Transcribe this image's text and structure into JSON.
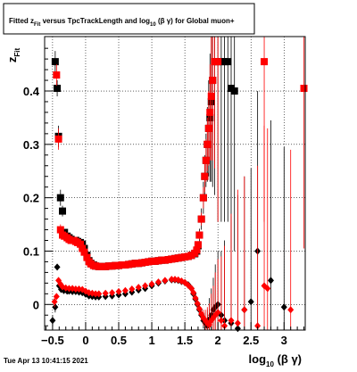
{
  "chart_data": {
    "type": "scatter",
    "title": "Fitted z_Fit versus TpcTrackLength and log10(βγ) for Global muon+",
    "title_parts": {
      "pre": "Fitted  z",
      "sub1": "Fit",
      "mid": " versus TpcTrackLength and log",
      "sub2": "10",
      "post": " (β γ) for Global muon+"
    },
    "xlabel": "log10 (β γ)",
    "xlabel_parts": {
      "pre": "log",
      "sub": "10",
      "post": " (β γ)"
    },
    "ylabel": "z_Fit",
    "ylabel_parts": {
      "pre": "z",
      "sub": "Fit"
    },
    "xlim": [
      -0.62,
      3.32
    ],
    "ylim": [
      -0.048,
      0.502
    ],
    "x_ticks": [
      -0.5,
      0,
      0.5,
      1,
      1.5,
      2,
      2.5,
      3
    ],
    "x_tick_labels": [
      "−0.5",
      "0",
      "0.5",
      "1",
      "1.5",
      "2",
      "2.5",
      "3"
    ],
    "y_ticks": [
      0,
      0.1,
      0.2,
      0.3,
      0.4
    ],
    "y_tick_labels": [
      "0",
      "0.1",
      "0.2",
      "0.3",
      "0.4"
    ],
    "grid": true,
    "timestamp": "Tue Apr 13 10:41:15 2021",
    "colors": {
      "black_series": "#000000",
      "red_series": "#ff0000",
      "frame": "#000000",
      "grid": "#000000"
    },
    "series": [
      {
        "marker": "square",
        "color": "#000000",
        "x": [
          -0.46,
          -0.43,
          -0.41,
          -0.38,
          -0.35,
          -0.32,
          -0.28,
          -0.25,
          -0.22,
          -0.18,
          -0.15,
          -0.12,
          -0.08,
          -0.05,
          -0.02,
          0.02,
          0.05,
          0.08,
          0.12,
          0.15,
          0.2,
          0.25,
          0.3,
          0.35,
          0.4,
          0.45,
          0.5,
          0.55,
          0.6,
          0.65,
          0.7,
          0.75,
          0.8,
          0.85,
          0.9,
          0.95,
          1.0,
          1.05,
          1.1,
          1.15,
          1.2,
          1.25,
          1.3,
          1.35,
          1.4,
          1.45,
          1.5,
          1.55,
          1.6,
          1.65,
          1.68,
          1.7,
          1.72,
          1.75,
          1.78,
          1.8,
          1.82,
          1.84,
          1.86,
          1.88,
          1.9,
          1.92,
          1.95,
          2.0,
          2.05,
          2.1,
          2.15,
          2.2,
          2.25
        ],
        "y": [
          0.455,
          0.405,
          0.315,
          0.2,
          0.175,
          0.135,
          0.128,
          0.125,
          0.122,
          0.12,
          0.12,
          0.118,
          0.116,
          0.113,
          0.105,
          0.092,
          0.082,
          0.077,
          0.074,
          0.072,
          0.071,
          0.071,
          0.071,
          0.072,
          0.072,
          0.073,
          0.073,
          0.074,
          0.074,
          0.075,
          0.076,
          0.077,
          0.077,
          0.078,
          0.079,
          0.08,
          0.081,
          0.081,
          0.082,
          0.083,
          0.083,
          0.084,
          0.085,
          0.086,
          0.087,
          0.088,
          0.089,
          0.09,
          0.092,
          0.095,
          0.1,
          0.11,
          0.13,
          0.16,
          0.2,
          0.24,
          0.27,
          0.3,
          0.33,
          0.35,
          0.38,
          0.42,
          0.455,
          0.455,
          0.455,
          0.455,
          0.455,
          0.405,
          0.4
        ],
        "yerr": [
          0.02,
          0.015,
          0.02,
          0.015,
          0.01,
          0.005,
          0.003,
          0.002,
          0.002,
          0.002,
          0.002,
          0.002,
          0.002,
          0.002,
          0.002,
          0.002,
          0.002,
          0.002,
          0.002,
          0.001,
          0.001,
          0.001,
          0.001,
          0.001,
          0.001,
          0.001,
          0.001,
          0.001,
          0.001,
          0.001,
          0.001,
          0.001,
          0.001,
          0.001,
          0.001,
          0.001,
          0.001,
          0.001,
          0.001,
          0.001,
          0.001,
          0.001,
          0.001,
          0.002,
          0.002,
          0.002,
          0.002,
          0.003,
          0.004,
          0.005,
          0.006,
          0.008,
          0.012,
          0.02,
          0.03,
          0.04,
          0.05,
          0.07,
          0.09,
          0.12,
          0.15,
          0.2,
          0.25,
          0.3,
          0.3,
          0.3,
          0.3,
          0.3,
          0.3
        ]
      },
      {
        "marker": "square",
        "color": "#ff0000",
        "x": [
          -0.44,
          -0.41,
          -0.38,
          -0.35,
          -0.32,
          -0.28,
          -0.25,
          -0.22,
          -0.18,
          -0.15,
          -0.12,
          -0.08,
          -0.05,
          -0.02,
          0.02,
          0.05,
          0.08,
          0.12,
          0.15,
          0.2,
          0.25,
          0.3,
          0.35,
          0.4,
          0.45,
          0.5,
          0.55,
          0.6,
          0.65,
          0.7,
          0.75,
          0.8,
          0.85,
          0.9,
          0.95,
          1.0,
          1.05,
          1.1,
          1.15,
          1.2,
          1.25,
          1.3,
          1.35,
          1.4,
          1.45,
          1.5,
          1.55,
          1.6,
          1.65,
          1.68,
          1.7,
          1.72,
          1.75,
          1.78,
          1.8,
          1.82,
          1.84,
          1.86,
          1.88,
          1.9,
          1.92,
          1.95,
          2.0,
          2.7,
          3.3
        ],
        "y": [
          0.43,
          0.31,
          0.14,
          0.13,
          0.128,
          0.125,
          0.122,
          0.12,
          0.12,
          0.118,
          0.116,
          0.113,
          0.105,
          0.098,
          0.088,
          0.08,
          0.076,
          0.073,
          0.072,
          0.071,
          0.071,
          0.071,
          0.072,
          0.072,
          0.073,
          0.073,
          0.074,
          0.074,
          0.075,
          0.076,
          0.077,
          0.077,
          0.078,
          0.079,
          0.08,
          0.081,
          0.081,
          0.082,
          0.083,
          0.083,
          0.084,
          0.085,
          0.086,
          0.087,
          0.088,
          0.089,
          0.09,
          0.092,
          0.096,
          0.102,
          0.112,
          0.13,
          0.16,
          0.2,
          0.24,
          0.27,
          0.3,
          0.33,
          0.36,
          0.39,
          0.42,
          0.455,
          0.455,
          0.455,
          0.405
        ],
        "yerr": [
          0.02,
          0.02,
          0.01,
          0.005,
          0.003,
          0.002,
          0.002,
          0.002,
          0.002,
          0.002,
          0.002,
          0.002,
          0.002,
          0.002,
          0.002,
          0.002,
          0.002,
          0.001,
          0.001,
          0.001,
          0.001,
          0.001,
          0.001,
          0.001,
          0.001,
          0.001,
          0.001,
          0.001,
          0.001,
          0.001,
          0.001,
          0.001,
          0.001,
          0.001,
          0.001,
          0.001,
          0.001,
          0.001,
          0.001,
          0.001,
          0.001,
          0.001,
          0.001,
          0.002,
          0.002,
          0.002,
          0.002,
          0.003,
          0.004,
          0.005,
          0.006,
          0.008,
          0.012,
          0.02,
          0.03,
          0.04,
          0.05,
          0.07,
          0.09,
          0.12,
          0.15,
          0.2,
          0.3,
          0.3,
          0.3
        ]
      },
      {
        "marker": "diamond",
        "color": "#000000",
        "x": [
          -0.5,
          -0.46,
          -0.43,
          -0.4,
          -0.37,
          -0.33,
          -0.28,
          -0.25,
          -0.2,
          -0.15,
          -0.1,
          -0.05,
          0.0,
          0.05,
          0.1,
          0.15,
          0.2,
          0.3,
          0.4,
          0.5,
          0.6,
          0.7,
          0.8,
          0.9,
          1.0,
          1.1,
          1.2,
          1.3,
          1.35,
          1.4,
          1.45,
          1.5,
          1.55,
          1.6,
          1.63,
          1.66,
          1.69,
          1.72,
          1.75,
          1.78,
          1.81,
          1.84,
          1.87,
          1.9,
          1.93,
          1.96,
          2.0,
          2.05,
          2.1,
          2.2,
          2.3,
          2.4,
          2.5,
          2.6,
          2.8,
          3.0
        ],
        "y": [
          -0.03,
          -0.005,
          0.07,
          0.035,
          0.028,
          0.026,
          0.025,
          0.025,
          0.024,
          0.024,
          0.023,
          0.022,
          0.019,
          0.016,
          0.015,
          0.014,
          0.014,
          0.015,
          0.016,
          0.018,
          0.02,
          0.023,
          0.027,
          0.03,
          0.035,
          0.04,
          0.044,
          0.046,
          0.046,
          0.045,
          0.043,
          0.041,
          0.037,
          0.03,
          0.02,
          0.01,
          0.0,
          -0.01,
          -0.02,
          -0.03,
          -0.035,
          -0.04,
          -0.028,
          -0.02,
          -0.01,
          -0.005,
          0.0,
          -0.02,
          -0.03,
          -0.035,
          -0.045,
          -0.01,
          0.005,
          0.1,
          0.045,
          -0.005
        ],
        "yerr": [
          0.01,
          0.01,
          0.005,
          0.003,
          0.002,
          0.002,
          0.002,
          0.001,
          0.001,
          0.001,
          0.001,
          0.001,
          0.001,
          0.001,
          0.001,
          0.001,
          0.001,
          0.001,
          0.001,
          0.001,
          0.001,
          0.001,
          0.001,
          0.001,
          0.001,
          0.001,
          0.001,
          0.001,
          0.001,
          0.001,
          0.002,
          0.002,
          0.003,
          0.004,
          0.005,
          0.006,
          0.008,
          0.01,
          0.012,
          0.015,
          0.02,
          0.03,
          0.04,
          0.05,
          0.06,
          0.08,
          0.1,
          0.12,
          0.15,
          0.2,
          0.25,
          0.25,
          0.25,
          0.3,
          0.3,
          0.3
        ]
      },
      {
        "marker": "diamond",
        "color": "#ff0000",
        "x": [
          -0.47,
          -0.44,
          -0.41,
          -0.38,
          -0.35,
          -0.3,
          -0.25,
          -0.2,
          -0.15,
          -0.1,
          -0.05,
          0.0,
          0.05,
          0.1,
          0.15,
          0.2,
          0.3,
          0.4,
          0.5,
          0.6,
          0.7,
          0.8,
          0.9,
          1.0,
          1.1,
          1.2,
          1.3,
          1.35,
          1.4,
          1.45,
          1.5,
          1.55,
          1.6,
          1.63,
          1.66,
          1.69,
          1.72,
          1.75,
          1.78,
          1.81,
          1.84,
          1.87,
          1.9,
          1.93,
          1.96,
          2.0,
          2.05,
          2.1,
          2.2,
          2.3,
          2.4,
          2.6,
          2.7,
          2.75,
          3.1
        ],
        "y": [
          0.005,
          0.015,
          0.045,
          0.038,
          0.033,
          0.031,
          0.03,
          0.03,
          0.029,
          0.029,
          0.028,
          0.025,
          0.022,
          0.021,
          0.02,
          0.02,
          0.021,
          0.022,
          0.024,
          0.026,
          0.029,
          0.032,
          0.035,
          0.038,
          0.042,
          0.045,
          0.047,
          0.047,
          0.046,
          0.044,
          0.041,
          0.036,
          0.03,
          0.022,
          0.012,
          0.002,
          -0.008,
          -0.018,
          -0.025,
          -0.03,
          -0.035,
          -0.038,
          -0.03,
          -0.025,
          -0.02,
          -0.015,
          -0.03,
          -0.04,
          -0.03,
          -0.035,
          -0.01,
          -0.04,
          0.035,
          0.03,
          -0.01
        ],
        "yerr": [
          0.01,
          0.005,
          0.003,
          0.002,
          0.002,
          0.002,
          0.001,
          0.001,
          0.001,
          0.001,
          0.001,
          0.001,
          0.001,
          0.001,
          0.001,
          0.001,
          0.001,
          0.001,
          0.001,
          0.001,
          0.001,
          0.001,
          0.001,
          0.001,
          0.001,
          0.001,
          0.001,
          0.001,
          0.001,
          0.002,
          0.002,
          0.003,
          0.004,
          0.005,
          0.006,
          0.008,
          0.01,
          0.012,
          0.015,
          0.02,
          0.03,
          0.04,
          0.05,
          0.06,
          0.08,
          0.1,
          0.12,
          0.15,
          0.2,
          0.25,
          0.25,
          0.3,
          0.3,
          0.3,
          0.3
        ]
      }
    ]
  }
}
